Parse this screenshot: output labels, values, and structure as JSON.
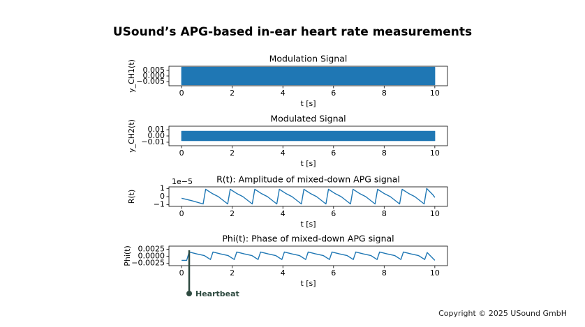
{
  "title": "USound’s APG-based in-ear heart rate measurements",
  "footer": "Copyright © 2025 USound GmbH",
  "chart_data": [
    {
      "type": "band",
      "title": "Modulation Signal",
      "x_label": "t [s]",
      "y_label": "y_CH1(t)",
      "color": "#1f77b4",
      "x": [
        0,
        10
      ],
      "upper": [
        0.0079,
        0.0079
      ],
      "lower": [
        -0.0079,
        -0.0079
      ],
      "xlim": [
        -0.5,
        10.5
      ],
      "xticks": [
        0,
        2,
        4,
        6,
        8,
        10
      ],
      "ylim": [
        -0.00875,
        0.00875
      ],
      "yticks": [
        {
          "value": 0.005,
          "label": "0.005"
        },
        {
          "value": 0,
          "label": "0.000"
        },
        {
          "value": -0.005,
          "label": "−0.005"
        }
      ]
    },
    {
      "type": "band",
      "title": "Modulated Signal",
      "x_label": "t [s]",
      "y_label": "y_CH2(t)",
      "color": "#1f77b4",
      "x": [
        0,
        10
      ],
      "upper": [
        0.0075,
        0.0075
      ],
      "lower": [
        -0.0075,
        -0.0075
      ],
      "xlim": [
        -0.5,
        10.5
      ],
      "xticks": [
        0,
        2,
        4,
        6,
        8,
        10
      ],
      "ylim": [
        -0.0156,
        0.0156
      ],
      "yticks": [
        {
          "value": 0.01,
          "label": "0.01"
        },
        {
          "value": 0,
          "label": "0.00"
        },
        {
          "value": -0.01,
          "label": "−0.01"
        }
      ]
    },
    {
      "type": "line",
      "title": "R(t): Amplitude of mixed-down APG signal",
      "x_label": "t [s]",
      "y_label": "R(t)",
      "offset_label": "1e−5",
      "color": "#1f77b4",
      "x": [
        0,
        0.4,
        0.85,
        0.95,
        1.2,
        1.45,
        1.82,
        1.92,
        2.17,
        2.42,
        2.79,
        2.89,
        3.14,
        3.39,
        3.76,
        3.86,
        4.11,
        4.36,
        4.73,
        4.83,
        5.08,
        5.33,
        5.7,
        5.8,
        6.05,
        6.3,
        6.67,
        6.77,
        7.02,
        7.27,
        7.64,
        7.74,
        7.99,
        8.24,
        8.61,
        8.71,
        8.96,
        9.21,
        9.58,
        9.68,
        9.93,
        10
      ],
      "values": [
        -0.2,
        -0.5,
        -0.9,
        0.9,
        0.4,
        0,
        -0.9,
        0.9,
        0.4,
        0,
        -0.9,
        0.9,
        0.4,
        0,
        -0.9,
        0.9,
        0.4,
        0,
        -0.9,
        0.9,
        0.4,
        0,
        -0.9,
        0.9,
        0.4,
        0,
        -0.9,
        0.9,
        0.4,
        0,
        -0.9,
        0.9,
        0.4,
        0,
        -0.9,
        0.9,
        0.4,
        0,
        -0.9,
        1.0,
        0.2,
        -0.1
      ],
      "xlim": [
        -0.5,
        10.5
      ],
      "xticks": [
        0,
        2,
        4,
        6,
        8,
        10
      ],
      "ylim": [
        -1.2,
        1.2
      ],
      "yticks": [
        1,
        0,
        {
          "value": -1,
          "label": "−1"
        }
      ]
    },
    {
      "type": "line",
      "title": "Phi(t): Phase of mixed-down APG signal",
      "x_label": "t [s]",
      "y_label": "Phi(t)",
      "color": "#1f77b4",
      "x": [
        0,
        0.2,
        0.3,
        0.6,
        0.9,
        1.14,
        1.24,
        1.54,
        1.84,
        2.08,
        2.18,
        2.48,
        2.78,
        3.02,
        3.12,
        3.42,
        3.72,
        3.96,
        4.06,
        4.36,
        4.66,
        4.9,
        5.0,
        5.3,
        5.6,
        5.84,
        5.94,
        6.24,
        6.54,
        6.78,
        6.88,
        7.18,
        7.48,
        7.72,
        7.82,
        8.12,
        8.42,
        8.66,
        8.76,
        9.06,
        9.36,
        9.6,
        9.7,
        10
      ],
      "values": [
        -0.0015,
        -0.0015,
        0.0015,
        0.0008,
        0.0002,
        -0.0012,
        0.0015,
        0.0008,
        0.0002,
        -0.0012,
        0.0015,
        0.0008,
        0.0002,
        -0.0012,
        0.0015,
        0.0008,
        0.0002,
        -0.0012,
        0.0015,
        0.0008,
        0.0002,
        -0.0012,
        0.0015,
        0.0008,
        0.0002,
        -0.0012,
        0.0015,
        0.0008,
        0.0002,
        -0.0012,
        0.0015,
        0.0008,
        0.0002,
        -0.0012,
        0.0015,
        0.0008,
        0.0002,
        -0.0012,
        0.0015,
        0.0008,
        0.0002,
        -0.0012,
        0.0013,
        -0.0015
      ],
      "xlim": [
        -0.5,
        10.5
      ],
      "xticks": [
        0,
        2,
        4,
        6,
        8,
        10
      ],
      "ylim": [
        -0.0034,
        0.0036
      ],
      "yticks": [
        {
          "value": 0.0025,
          "label": "0.0025"
        },
        {
          "value": 0,
          "label": "0.0000"
        },
        {
          "value": -0.0025,
          "label": "−0.0025"
        }
      ],
      "annotation": {
        "text": "Heartbeat",
        "x": 0.3,
        "color": "#2e4a40"
      }
    }
  ]
}
